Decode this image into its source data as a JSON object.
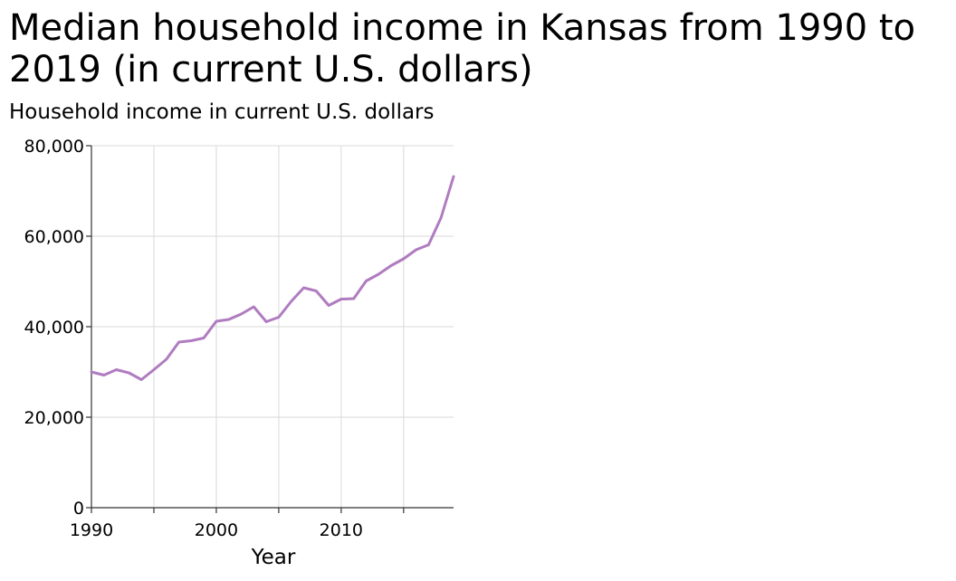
{
  "chart_data": {
    "type": "line",
    "title": "Median household income in Kansas from 1990 to 2019 (in current U.S. dollars)",
    "xlabel": "Year",
    "ylabel": "Household income in current U.S. dollars",
    "x_ticks": [
      1990,
      2000,
      2010
    ],
    "y_ticks": [
      0,
      20000,
      40000,
      60000,
      80000
    ],
    "y_tick_labels": [
      "0",
      "20,000",
      "40,000",
      "60,000",
      "80,000"
    ],
    "xlim": [
      1990,
      2019
    ],
    "ylim": [
      0,
      80000
    ],
    "grid": true,
    "line_color": "#b07cc0",
    "series": [
      {
        "x": [
          1990,
          1991,
          1992,
          1993,
          1994,
          1995,
          1996,
          1997,
          1998,
          1999,
          2000,
          2001,
          2002,
          2003,
          2004,
          2005,
          2006,
          2007,
          2008,
          2009,
          2010,
          2011,
          2012,
          2013,
          2014,
          2015,
          2016,
          2017,
          2018,
          2019
        ],
        "values": [
          30000,
          29300,
          30500,
          29800,
          28300,
          30500,
          32800,
          36600,
          36900,
          37500,
          41200,
          41600,
          42800,
          44400,
          41100,
          42100,
          45600,
          48600,
          47900,
          44700,
          46100,
          46200,
          50100,
          51600,
          53500,
          55000,
          57000,
          58100,
          64100,
          73200
        ]
      }
    ]
  }
}
